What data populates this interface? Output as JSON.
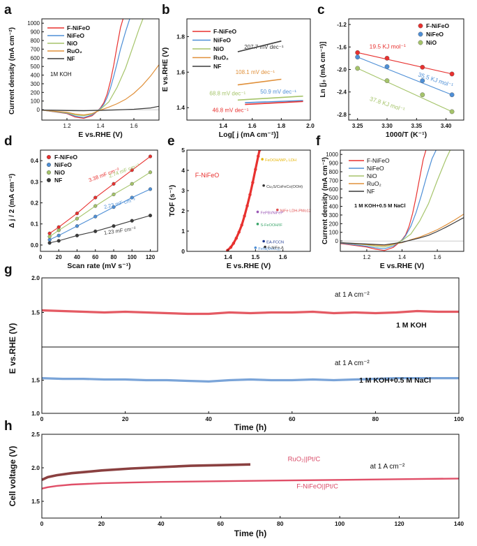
{
  "figure": {
    "panel_letters": [
      "a",
      "b",
      "c",
      "d",
      "e",
      "f",
      "g",
      "h"
    ]
  },
  "colors": {
    "F-NiFeO": "#e8312f",
    "NiFeO": "#4e8fd6",
    "NiO": "#a5c46a",
    "RuO2": "#e0903a",
    "NF": "#3a3a3a",
    "NF_b": "#2a2a2a",
    "panelG_red": "#e45a63",
    "panelG_blue": "#7aa4d8",
    "panelH_dark": "#8a4040",
    "panelH_pink": "#e04f68",
    "pinkText": "#d94a67"
  },
  "chart_data": [
    {
      "panel": "a",
      "type": "line",
      "title": "",
      "xlabel": "E vs.RHE (V)",
      "ylabel": "Current density (mA cm⁻²)",
      "xlim": [
        1.05,
        1.75
      ],
      "ylim": [
        -120,
        1050
      ],
      "xticks": [
        "1.2",
        "1.4",
        "1.6"
      ],
      "xtick_values": [
        1.2,
        1.4,
        1.6
      ],
      "yticks": [
        "0",
        "100",
        "200",
        "300",
        "400",
        "500",
        "600",
        "700",
        "800",
        "900",
        "1000"
      ],
      "ytick_values": [
        0,
        100,
        200,
        300,
        400,
        500,
        600,
        700,
        800,
        900,
        1000
      ],
      "annotation": "1M KOH",
      "legend": [
        "F-NiFeO",
        "NiFeO",
        "NiO",
        "RuO₂",
        "NF"
      ],
      "series": [
        {
          "name": "F-NiFeO",
          "x": [
            1.05,
            1.2,
            1.25,
            1.3,
            1.35,
            1.38,
            1.4,
            1.42,
            1.44,
            1.46,
            1.48,
            1.5,
            1.52,
            1.54
          ],
          "y": [
            -5,
            -45,
            -85,
            -100,
            -70,
            -20,
            20,
            80,
            180,
            330,
            520,
            740,
            950,
            1080
          ]
        },
        {
          "name": "NiFeO",
          "x": [
            1.05,
            1.2,
            1.25,
            1.3,
            1.35,
            1.38,
            1.4,
            1.42,
            1.44,
            1.46,
            1.48,
            1.5,
            1.52,
            1.55,
            1.58
          ],
          "y": [
            -5,
            -40,
            -75,
            -90,
            -60,
            -18,
            15,
            60,
            140,
            250,
            390,
            540,
            700,
            900,
            1080
          ]
        },
        {
          "name": "NiO",
          "x": [
            1.05,
            1.2,
            1.25,
            1.3,
            1.35,
            1.4,
            1.45,
            1.5,
            1.55,
            1.6,
            1.63,
            1.66
          ],
          "y": [
            -5,
            -35,
            -60,
            -70,
            -50,
            5,
            90,
            260,
            480,
            760,
            930,
            1080
          ]
        },
        {
          "name": "RuO₂",
          "x": [
            1.05,
            1.2,
            1.25,
            1.3,
            1.35,
            1.4,
            1.45,
            1.5,
            1.55,
            1.6,
            1.65,
            1.7,
            1.75
          ],
          "y": [
            -5,
            -30,
            -50,
            -60,
            -45,
            -5,
            30,
            70,
            120,
            190,
            280,
            390,
            520
          ]
        },
        {
          "name": "NF",
          "x": [
            1.05,
            1.2,
            1.3,
            1.4,
            1.5,
            1.6,
            1.7,
            1.75
          ],
          "y": [
            -5,
            -10,
            -12,
            -8,
            -2,
            5,
            20,
            40
          ]
        }
      ]
    },
    {
      "panel": "b",
      "type": "line",
      "title": "",
      "xlabel": "Log[ j (mA cm⁻²)]",
      "ylabel": "E vs.RHE (V)",
      "xlim": [
        1.15,
        2.0
      ],
      "ylim": [
        1.33,
        1.9
      ],
      "xticks": [
        "1.4",
        "1.6",
        "1.8",
        "2.0"
      ],
      "xtick_values": [
        1.4,
        1.6,
        1.8,
        2.0
      ],
      "yticks": [
        "1.4",
        "1.6",
        "1.8"
      ],
      "ytick_values": [
        1.4,
        1.6,
        1.8
      ],
      "legend": [
        "F-NiFeO",
        "NiFeO",
        "NiO",
        "RuO₂",
        "NF"
      ],
      "series": [
        {
          "name": "NF",
          "x": [
            1.5,
            1.8
          ],
          "y": [
            1.715,
            1.775
          ]
        },
        {
          "name": "RuO₂",
          "x": [
            1.5,
            1.8
          ],
          "y": [
            1.528,
            1.56
          ]
        },
        {
          "name": "NiO",
          "x": [
            1.5,
            1.95
          ],
          "y": [
            1.443,
            1.465
          ]
        },
        {
          "name": "NiFeO",
          "x": [
            1.55,
            1.95
          ],
          "y": [
            1.428,
            1.44
          ]
        },
        {
          "name": "F-NiFeO",
          "x": [
            1.55,
            1.95
          ],
          "y": [
            1.418,
            1.435
          ]
        }
      ],
      "annotations": [
        {
          "text": "207.7 mV dec⁻¹",
          "x": 1.68,
          "y": 1.73,
          "series": "NF"
        },
        {
          "text": "108.1 mV dec⁻¹",
          "x": 1.62,
          "y": 1.59,
          "series": "RuO₂"
        },
        {
          "text": "68.8 mV dec⁻¹",
          "x": 1.43,
          "y": 1.47,
          "series": "NiO"
        },
        {
          "text": "50.9 mV dec⁻¹",
          "x": 1.78,
          "y": 1.48,
          "series": "NiFeO"
        },
        {
          "text": "46.8 mV dec⁻¹",
          "x": 1.45,
          "y": 1.375,
          "series": "F-NiFeO"
        }
      ]
    },
    {
      "panel": "c",
      "type": "scatter",
      "title": "",
      "xlabel": "1000/T (K⁻¹)",
      "ylabel": "Ln [j₀ (mA cm⁻²)]",
      "xlim": [
        3.235,
        3.43
      ],
      "ylim": [
        -2.9,
        -1.1
      ],
      "xticks": [
        "3.25",
        "3.30",
        "3.35",
        "3.40"
      ],
      "xtick_values": [
        3.25,
        3.3,
        3.35,
        3.4
      ],
      "yticks": [
        "-2.8",
        "-2.4",
        "-2.0",
        "-1.6",
        "-1.2"
      ],
      "ytick_values": [
        -2.8,
        -2.4,
        -2.0,
        -1.6,
        -1.2
      ],
      "legend": [
        "F-NiFeO",
        "NiFeO",
        "NiO"
      ],
      "series": [
        {
          "name": "F-NiFeO",
          "x": [
            3.25,
            3.3,
            3.36,
            3.41
          ],
          "y": [
            -1.7,
            -1.8,
            -1.96,
            -2.08
          ]
        },
        {
          "name": "NiFeO",
          "x": [
            3.25,
            3.3,
            3.36,
            3.41
          ],
          "y": [
            -1.78,
            -1.95,
            -2.2,
            -2.45
          ]
        },
        {
          "name": "NiO",
          "x": [
            3.25,
            3.3,
            3.36,
            3.41
          ],
          "y": [
            -1.98,
            -2.2,
            -2.45,
            -2.75
          ]
        }
      ],
      "annotations": [
        {
          "text": "19.5 KJ mol⁻¹",
          "x": 3.27,
          "y": -1.63,
          "series": "F-NiFeO"
        },
        {
          "text": "35.5 KJ mol⁻¹",
          "x": 3.352,
          "y": -2.12,
          "series": "NiFeO"
        },
        {
          "text": "37.8 KJ mol⁻¹",
          "x": 3.27,
          "y": -2.55,
          "series": "NiO"
        }
      ]
    },
    {
      "panel": "d",
      "type": "scatter",
      "title": "",
      "xlabel": "Scan rate (mV s⁻¹)",
      "ylabel": "Δ j / 2 (mA cm⁻²)",
      "xlim": [
        0,
        128
      ],
      "ylim": [
        -0.03,
        0.45
      ],
      "xticks": [
        "0",
        "20",
        "40",
        "60",
        "80",
        "100",
        "120"
      ],
      "xtick_values": [
        0,
        20,
        40,
        60,
        80,
        100,
        120
      ],
      "yticks": [
        "0.0",
        "0.1",
        "0.2",
        "0.3",
        "0.4"
      ],
      "ytick_values": [
        0.0,
        0.1,
        0.2,
        0.3,
        0.4
      ],
      "legend": [
        "F-NiFeO",
        "NiFeO",
        "NiO",
        "NF"
      ],
      "x": [
        10,
        20,
        40,
        60,
        80,
        100,
        120
      ],
      "series": [
        {
          "name": "F-NiFeO",
          "values": [
            0.055,
            0.085,
            0.15,
            0.225,
            0.29,
            0.355,
            0.42
          ]
        },
        {
          "name": "NiFeO",
          "values": [
            0.025,
            0.045,
            0.09,
            0.135,
            0.18,
            0.225,
            0.265
          ]
        },
        {
          "name": "NiO",
          "values": [
            0.04,
            0.07,
            0.125,
            0.185,
            0.24,
            0.29,
            0.345
          ]
        },
        {
          "name": "NF",
          "values": [
            0.01,
            0.02,
            0.045,
            0.065,
            0.09,
            0.115,
            0.14
          ]
        }
      ],
      "annotations": [
        {
          "text": "3.38 mF cm⁻²",
          "x": 70,
          "y": 0.325,
          "series": "F-NiFeO"
        },
        {
          "text": "2.74 mF cm⁻²",
          "x": 92,
          "y": 0.345,
          "series": "NiO"
        },
        {
          "text": "2.23 mF cm⁻²",
          "x": 87,
          "y": 0.19,
          "series": "NiFeO"
        },
        {
          "text": "1.23 mF cm⁻²",
          "x": 87,
          "y": 0.06,
          "series": "NF"
        }
      ]
    },
    {
      "panel": "e",
      "type": "scatter",
      "title": "",
      "xlabel": "E vs.RHE (V)",
      "ylabel": "TOF (s⁻¹)",
      "xlim": [
        1.25,
        1.7
      ],
      "ylim": [
        0,
        5
      ],
      "xticks": [
        "1.4",
        "1.5",
        "1.6"
      ],
      "xtick_values": [
        1.4,
        1.5,
        1.6
      ],
      "yticks": [
        "0",
        "1",
        "2",
        "3",
        "4",
        "5"
      ],
      "ytick_values": [
        0,
        1,
        2,
        3,
        4,
        5
      ],
      "series": [
        {
          "name": "F-NiFeO",
          "x": [
            1.398,
            1.41,
            1.42,
            1.43,
            1.44,
            1.45,
            1.46,
            1.47,
            1.48,
            1.49,
            1.5,
            1.51,
            1.515
          ],
          "y": [
            0.05,
            0.2,
            0.4,
            0.65,
            0.95,
            1.3,
            1.75,
            2.25,
            2.8,
            3.4,
            4.05,
            4.7,
            5.0
          ]
        }
      ],
      "labels": {
        "F-NiFeO": "F-NiFeO"
      },
      "reference_points": [
        {
          "label": "FeOOH/WP₃ LDH",
          "x": 1.525,
          "y": 4.55,
          "color": "#e6b400"
        },
        {
          "label": "Cu₃S/CoFeCo(OOH)",
          "x": 1.53,
          "y": 3.25,
          "color": "#333333"
        },
        {
          "label": "NiFe LDH-PMo12",
          "x": 1.58,
          "y": 2.05,
          "color": "#e05050"
        },
        {
          "label": "FePBI/NiFeP",
          "x": 1.508,
          "y": 1.95,
          "color": "#9b59b6"
        },
        {
          "label": "S-FeOOH/IF",
          "x": 1.508,
          "y": 1.35,
          "color": "#3aa56a"
        },
        {
          "label": "EA-FCCN",
          "x": 1.53,
          "y": 0.5,
          "color": "#1f3a93"
        },
        {
          "label": "FeNi(MoO₄)₂",
          "x": 1.5,
          "y": 0.18,
          "color": "#4e8fd6"
        },
        {
          "label": "F-NiFe-A",
          "x": 1.535,
          "y": 0.22,
          "color": "#333333"
        }
      ]
    },
    {
      "panel": "f",
      "type": "line",
      "title": "",
      "xlabel": "E vs.RHE (V)",
      "ylabel": "Current density (mA cm⁻²)",
      "xlim": [
        1.05,
        1.75
      ],
      "ylim": [
        -120,
        1050
      ],
      "xticks": [
        "1.2",
        "1.4",
        "1.6"
      ],
      "xtick_values": [
        1.2,
        1.4,
        1.6
      ],
      "yticks": [
        "0",
        "100",
        "200",
        "300",
        "400",
        "500",
        "600",
        "700",
        "800",
        "900",
        "1000"
      ],
      "ytick_values": [
        0,
        100,
        200,
        300,
        400,
        500,
        600,
        700,
        800,
        900,
        1000
      ],
      "annotation": "1 M KOH+0.5 M NaCl",
      "legend": [
        "F-NiFeO",
        "NiFeO",
        "NiO",
        "RuO₂",
        "NF"
      ],
      "series": [
        {
          "name": "F-NiFeO",
          "x": [
            1.05,
            1.2,
            1.25,
            1.3,
            1.35,
            1.38,
            1.4,
            1.42,
            1.44,
            1.46,
            1.48,
            1.5,
            1.52,
            1.54
          ],
          "y": [
            -30,
            -70,
            -95,
            -110,
            -75,
            -25,
            15,
            70,
            170,
            320,
            510,
            730,
            940,
            1080
          ]
        },
        {
          "name": "NiFeO",
          "x": [
            1.05,
            1.2,
            1.25,
            1.3,
            1.35,
            1.4,
            1.42,
            1.45,
            1.48,
            1.51,
            1.54,
            1.57,
            1.6
          ],
          "y": [
            -25,
            -60,
            -80,
            -90,
            -60,
            10,
            60,
            170,
            330,
            530,
            750,
            950,
            1080
          ]
        },
        {
          "name": "NiO",
          "x": [
            1.05,
            1.2,
            1.25,
            1.3,
            1.35,
            1.4,
            1.45,
            1.5,
            1.55,
            1.6,
            1.65,
            1.68
          ],
          "y": [
            -20,
            -45,
            -60,
            -70,
            -45,
            5,
            80,
            230,
            430,
            700,
            950,
            1080
          ]
        },
        {
          "name": "RuO₂",
          "x": [
            1.05,
            1.2,
            1.3,
            1.4,
            1.45,
            1.5,
            1.55,
            1.6,
            1.65,
            1.7,
            1.75
          ],
          "y": [
            -20,
            -40,
            -55,
            -20,
            15,
            45,
            85,
            130,
            185,
            245,
            310
          ]
        },
        {
          "name": "NF",
          "x": [
            1.05,
            1.2,
            1.3,
            1.4,
            1.45,
            1.5,
            1.55,
            1.6,
            1.65,
            1.7,
            1.75
          ],
          "y": [
            -20,
            -35,
            -45,
            -15,
            10,
            35,
            65,
            110,
            160,
            215,
            270
          ]
        }
      ]
    },
    {
      "panel": "g",
      "type": "line",
      "title": "",
      "xlabel": "Time (h)",
      "ylabel": "E vs.RHE (V)",
      "xlim": [
        0,
        100
      ],
      "ylim_top": [
        1.0,
        2.0
      ],
      "ylim_bottom": [
        1.0,
        2.0
      ],
      "xticks": [
        "0",
        "20",
        "40",
        "60",
        "80",
        "100"
      ],
      "xtick_values": [
        0,
        20,
        40,
        60,
        80,
        100
      ],
      "yticks": [
        "1.0",
        "1.5",
        "2.0"
      ],
      "ytick_values": [
        1.0,
        1.5,
        2.0
      ],
      "x": [
        0,
        5,
        10,
        15,
        20,
        25,
        30,
        35,
        40,
        45,
        50,
        55,
        60,
        65,
        70,
        75,
        80,
        85,
        90,
        95,
        100
      ],
      "series": [
        {
          "name": "1 M KOH",
          "condition": "at 1 A cm⁻²",
          "values": [
            1.53,
            1.52,
            1.51,
            1.5,
            1.51,
            1.5,
            1.49,
            1.48,
            1.48,
            1.5,
            1.49,
            1.5,
            1.5,
            1.51,
            1.49,
            1.5,
            1.49,
            1.5,
            1.52,
            1.51,
            1.51
          ]
        },
        {
          "name": "1 M KOH+0.5 M NaCl",
          "condition": "at 1 A cm⁻²",
          "values": [
            1.53,
            1.52,
            1.52,
            1.51,
            1.51,
            1.5,
            1.5,
            1.49,
            1.48,
            1.5,
            1.51,
            1.5,
            1.5,
            1.51,
            1.5,
            1.51,
            1.52,
            1.53,
            1.53,
            1.53,
            1.53
          ]
        }
      ]
    },
    {
      "panel": "h",
      "type": "line",
      "title": "",
      "xlabel": "Time (h)",
      "ylabel": "Cell voltage (V)",
      "xlim": [
        0,
        140
      ],
      "ylim": [
        1.25,
        2.5
      ],
      "xticks": [
        "0",
        "20",
        "40",
        "60",
        "80",
        "100",
        "120",
        "140"
      ],
      "xtick_values": [
        0,
        20,
        40,
        60,
        80,
        100,
        120,
        140
      ],
      "yticks": [
        "1.5",
        "2.0",
        "2.5"
      ],
      "ytick_values": [
        1.5,
        2.0,
        2.5
      ],
      "condition": "at 1 A cm⁻²",
      "series": [
        {
          "name": "RuO₂||Pt/C",
          "x": [
            0,
            2,
            5,
            10,
            15,
            20,
            30,
            40,
            50,
            60,
            70
          ],
          "y": [
            1.82,
            1.86,
            1.89,
            1.92,
            1.94,
            1.96,
            1.99,
            2.01,
            2.03,
            2.04,
            2.05
          ]
        },
        {
          "name": "F-NiFeO||Pt/C",
          "x": [
            0,
            2,
            5,
            10,
            20,
            30,
            40,
            60,
            80,
            100,
            120,
            140
          ],
          "y": [
            1.69,
            1.71,
            1.73,
            1.75,
            1.77,
            1.78,
            1.79,
            1.8,
            1.81,
            1.82,
            1.83,
            1.84
          ]
        }
      ]
    }
  ]
}
